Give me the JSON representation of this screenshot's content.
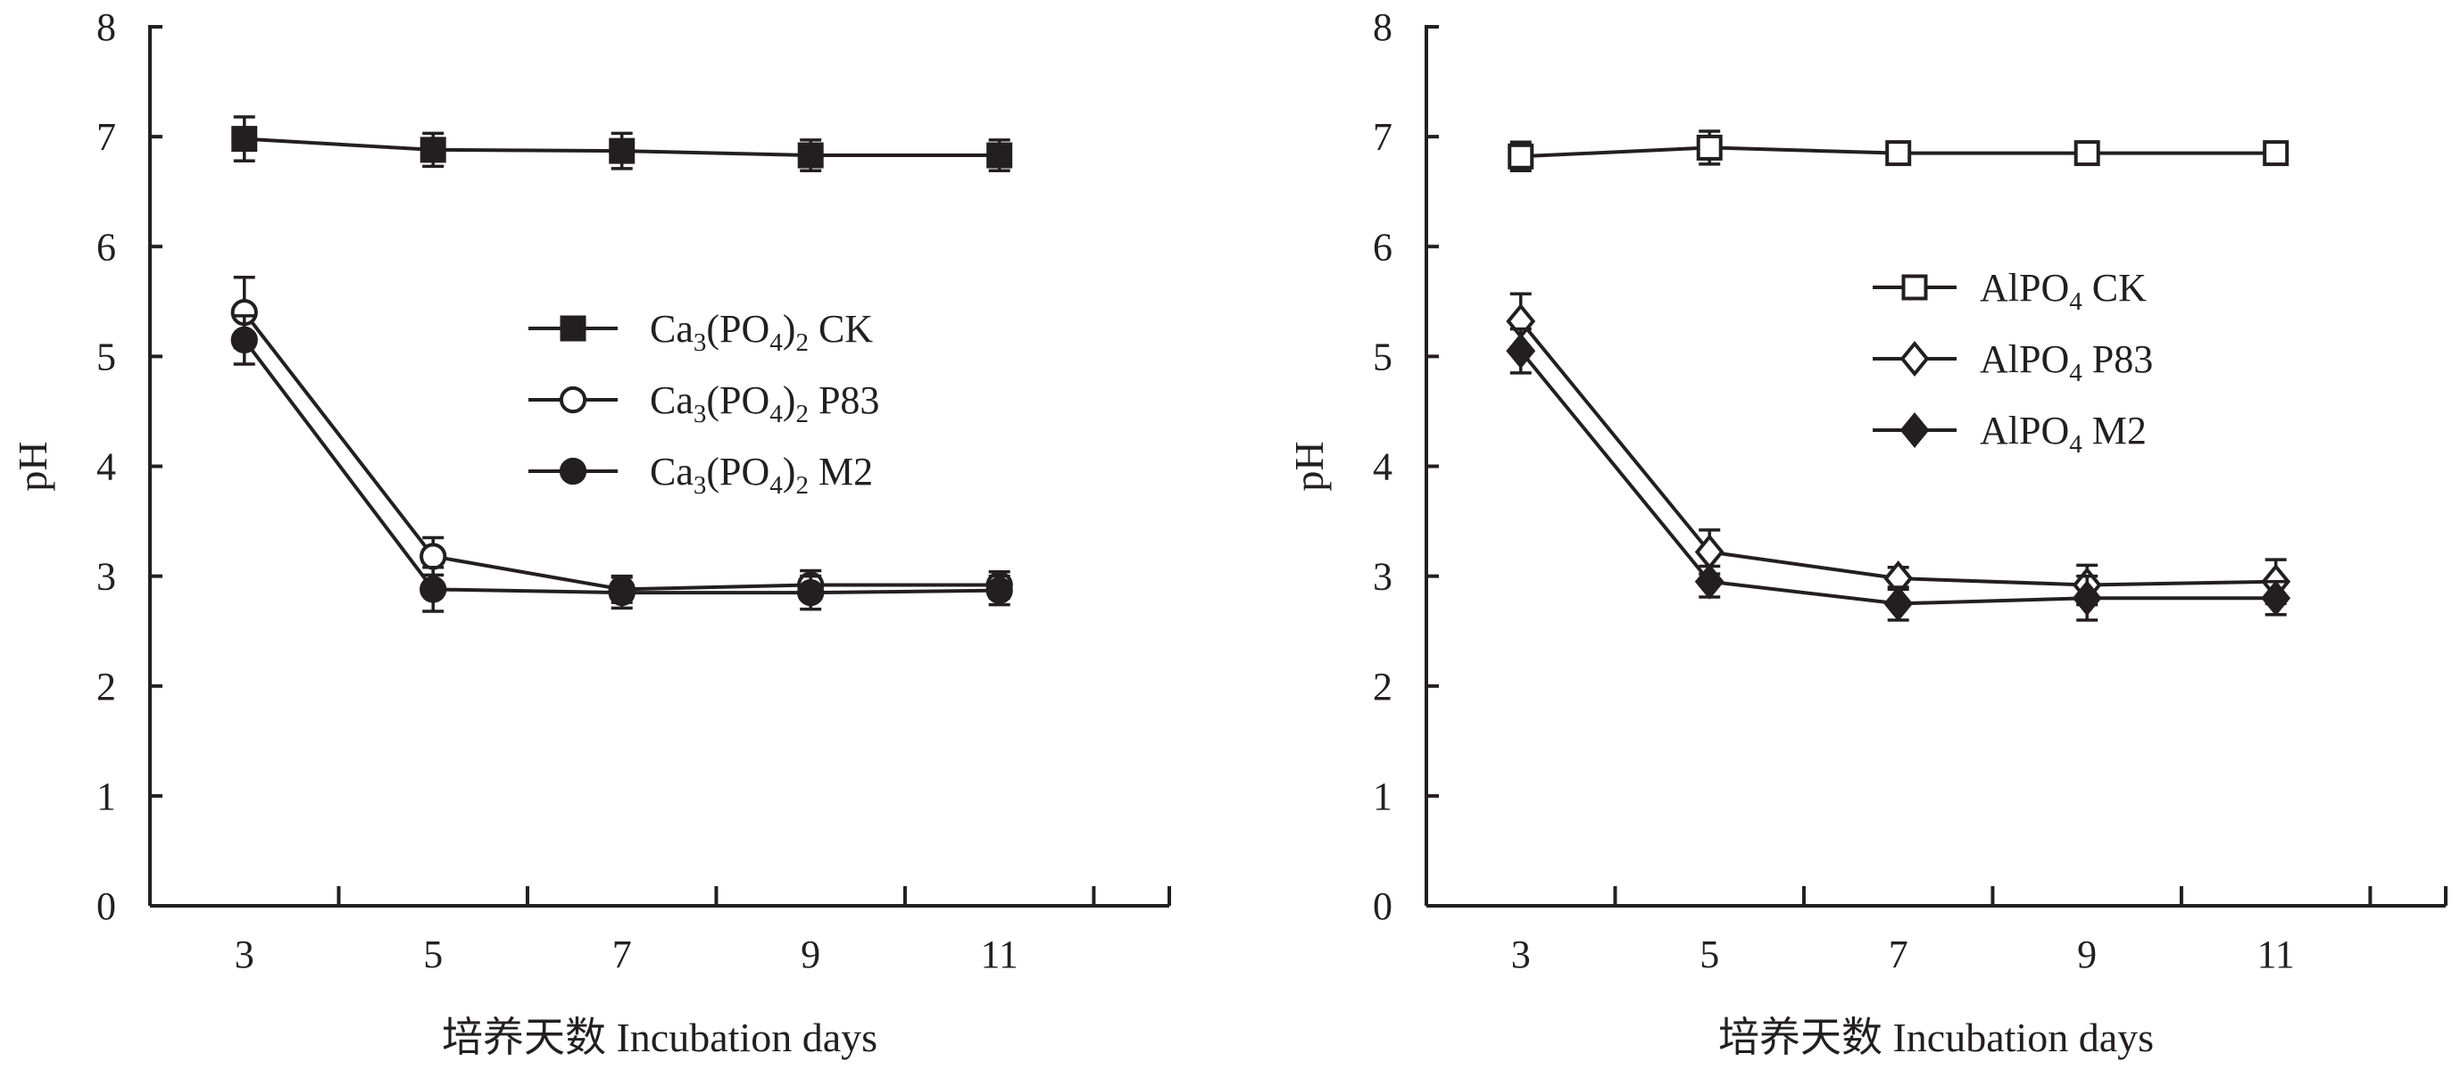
{
  "chart_data": [
    {
      "type": "line",
      "xlabel": "培养天数 Incubation days",
      "ylabel": "pH",
      "x": [
        3,
        5,
        7,
        9,
        11
      ],
      "xticks": [
        "3",
        "5",
        "7",
        "9",
        "11"
      ],
      "yticks": [
        "0",
        "1",
        "2",
        "3",
        "4",
        "5",
        "6",
        "7",
        "8"
      ],
      "ylim": [
        0,
        8
      ],
      "grid": false,
      "legend_position": "center",
      "series": [
        {
          "name": "Ca3(PO4)2  CK",
          "legend": [
            {
              "t": "Ca"
            },
            {
              "t": "3",
              "sub": true
            },
            {
              "t": "(PO"
            },
            {
              "t": "4",
              "sub": true
            },
            {
              "t": ")"
            },
            {
              "t": "2",
              "sub": true
            },
            {
              "t": "  CK"
            }
          ],
          "marker": "square-filled",
          "values": [
            6.98,
            6.88,
            6.87,
            6.83,
            6.83
          ],
          "error": [
            0.2,
            0.15,
            0.16,
            0.14,
            0.14
          ]
        },
        {
          "name": "Ca3(PO4)2 P83",
          "legend": [
            {
              "t": "Ca"
            },
            {
              "t": "3",
              "sub": true
            },
            {
              "t": "(PO"
            },
            {
              "t": "4",
              "sub": true
            },
            {
              "t": ")"
            },
            {
              "t": "2",
              "sub": true
            },
            {
              "t": " P83"
            }
          ],
          "marker": "circle-open",
          "values": [
            5.4,
            3.18,
            2.88,
            2.92,
            2.92
          ],
          "error": [
            0.32,
            0.17,
            0.12,
            0.13,
            0.12
          ]
        },
        {
          "name": "Ca3(PO4)2 M2",
          "legend": [
            {
              "t": "Ca"
            },
            {
              "t": "3",
              "sub": true
            },
            {
              "t": "(PO"
            },
            {
              "t": "4",
              "sub": true
            },
            {
              "t": ")"
            },
            {
              "t": "2",
              "sub": true
            },
            {
              "t": " M2"
            }
          ],
          "marker": "circle-filled",
          "values": [
            5.15,
            2.88,
            2.85,
            2.85,
            2.87
          ],
          "error": [
            0.22,
            0.2,
            0.14,
            0.15,
            0.13
          ]
        }
      ]
    },
    {
      "type": "line",
      "xlabel": "培养天数 Incubation days",
      "ylabel": "pH",
      "x": [
        3,
        5,
        7,
        9,
        11
      ],
      "xticks": [
        "3",
        "5",
        "7",
        "9",
        "11"
      ],
      "yticks": [
        "0",
        "1",
        "2",
        "3",
        "4",
        "5",
        "6",
        "7",
        "8"
      ],
      "ylim": [
        0,
        8
      ],
      "grid": false,
      "legend_position": "top-right",
      "series": [
        {
          "name": "AlPO4 CK",
          "legend": [
            {
              "t": "AlPO"
            },
            {
              "t": "4",
              "sub": true
            },
            {
              "t": " CK"
            }
          ],
          "marker": "square-open",
          "values": [
            6.82,
            6.9,
            6.85,
            6.85,
            6.85
          ],
          "error": [
            0.13,
            0.15,
            0.06,
            0.06,
            0.06
          ]
        },
        {
          "name": "AlPO4 P83",
          "legend": [
            {
              "t": "AlPO"
            },
            {
              "t": "4",
              "sub": true
            },
            {
              "t": " P83"
            }
          ],
          "marker": "diamond-open",
          "values": [
            5.32,
            3.22,
            2.98,
            2.92,
            2.95
          ],
          "error": [
            0.25,
            0.2,
            0.1,
            0.18,
            0.2
          ]
        },
        {
          "name": "AlPO4 M2",
          "legend": [
            {
              "t": "AlPO"
            },
            {
              "t": "4",
              "sub": true
            },
            {
              "t": " M2"
            }
          ],
          "marker": "diamond-filled",
          "values": [
            5.05,
            2.95,
            2.75,
            2.8,
            2.8
          ],
          "error": [
            0.2,
            0.14,
            0.15,
            0.2,
            0.15
          ]
        }
      ]
    }
  ]
}
